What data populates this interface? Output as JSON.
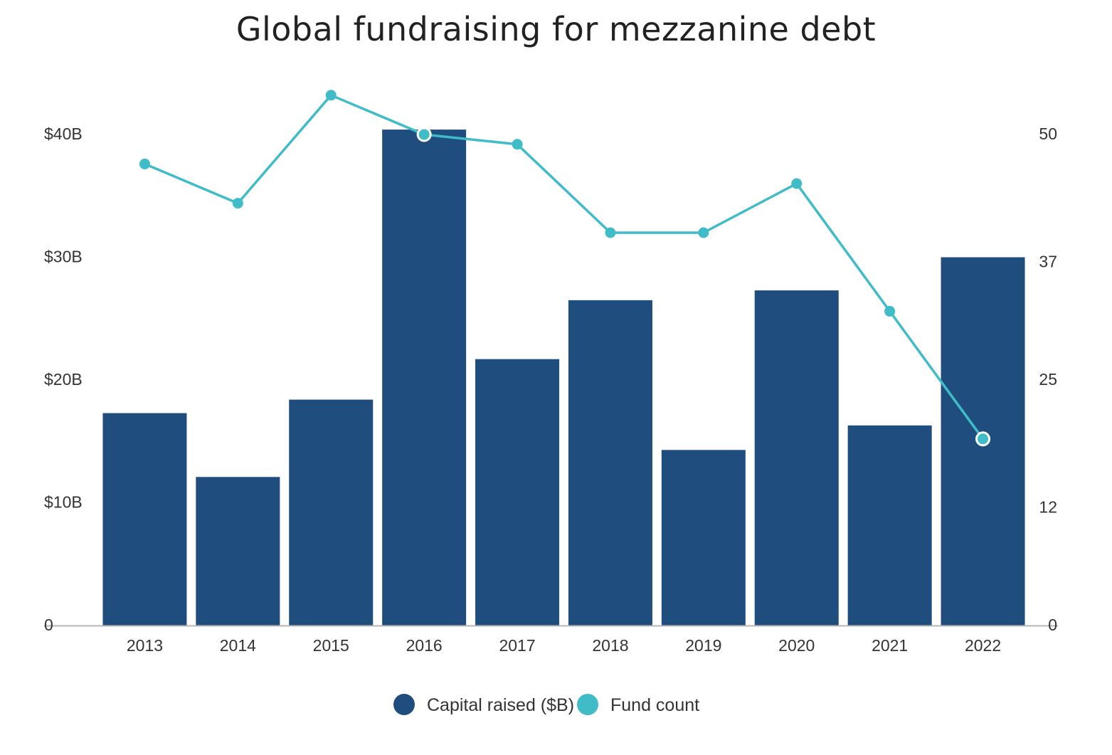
{
  "chart_data": {
    "type": "bar",
    "title": "Global fundraising for mezzanine debt",
    "categories": [
      "2013",
      "2014",
      "2015",
      "2016",
      "2017",
      "2018",
      "2019",
      "2020",
      "2021",
      "2022"
    ],
    "series": [
      {
        "name": "Capital raised ($B)",
        "type": "bar",
        "axis": "left",
        "color": "#1f4e7e",
        "values": [
          17.3,
          12.1,
          18.4,
          40.4,
          21.7,
          26.5,
          14.3,
          27.3,
          16.3,
          30.0
        ]
      },
      {
        "name": "Fund count",
        "type": "line",
        "axis": "right",
        "color": "#3fbcc8",
        "values": [
          47,
          43,
          54,
          50,
          49,
          40,
          40,
          45,
          32,
          19
        ]
      }
    ],
    "left_axis": {
      "ticks": [
        0,
        10,
        20,
        30,
        40
      ],
      "tick_labels": [
        "0",
        "$10B",
        "$20B",
        "$30B",
        "$40B"
      ],
      "range": [
        0,
        40
      ]
    },
    "right_axis": {
      "ticks": [
        0,
        12,
        25,
        37,
        50
      ],
      "tick_labels": [
        "0",
        "12",
        "25",
        "37",
        "50"
      ],
      "range": [
        0,
        50
      ]
    },
    "highlighted_points": [
      "2016",
      "2022"
    ],
    "legend": {
      "position": "bottom",
      "items": [
        "Capital raised ($B)",
        "Fund count"
      ]
    },
    "grid": false
  }
}
